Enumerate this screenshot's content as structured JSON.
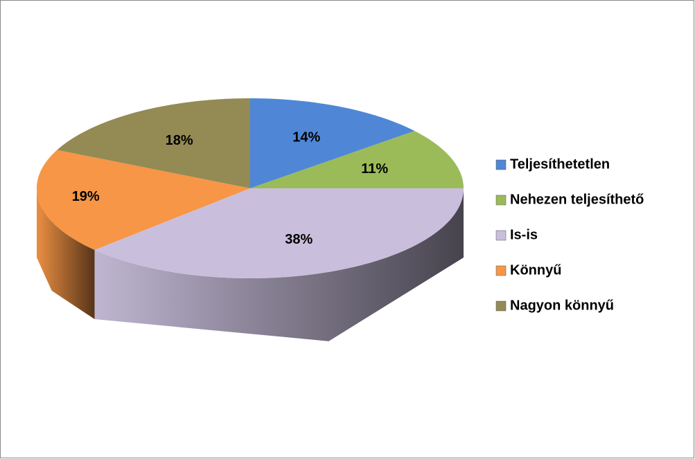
{
  "chart_data": {
    "type": "pie",
    "categories": [
      "Teljesíthetetlen",
      "Nehezen teljesíthető",
      "Is-is",
      "Könnyű",
      "Nagyon könnyű"
    ],
    "values": [
      14,
      11,
      38,
      19,
      18
    ],
    "value_labels": [
      "14%",
      "11%",
      "38%",
      "19%",
      "18%"
    ],
    "colors": [
      "#4f87d6",
      "#9bbb59",
      "#c9bfdc",
      "#f79646",
      "#948a54"
    ],
    "legend": "right"
  }
}
